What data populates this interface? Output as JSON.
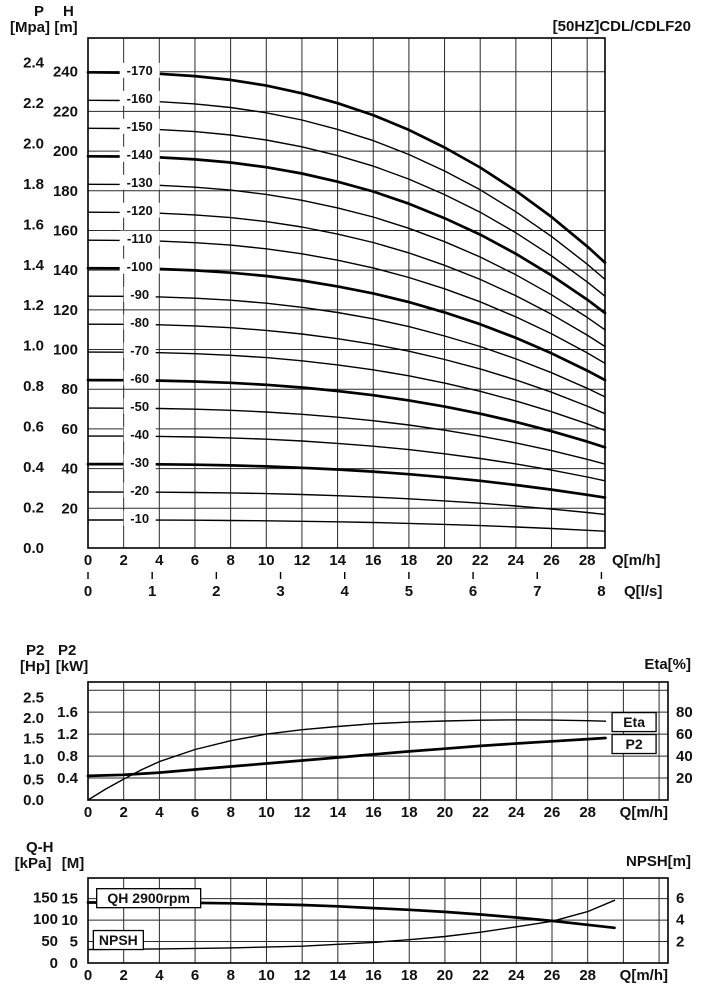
{
  "chart_data": [
    {
      "type": "line",
      "title": "[50HZ]CDL/CDLF20",
      "header": {
        "col1": "P",
        "col2": "H",
        "col1_unit": "[Mpa]",
        "col2_unit": "[m]"
      },
      "x_axis": {
        "label": "Q[m/h]",
        "min": 0,
        "max": 29,
        "grid_step": 2,
        "ticks": [
          "0",
          "2",
          "4",
          "6",
          "8",
          "10",
          "12",
          "14",
          "16",
          "18",
          "20",
          "22",
          "24",
          "26",
          "28"
        ]
      },
      "x_axis2": {
        "label": "Q[l/s]",
        "to_primary": 3.6,
        "ticks": [
          "0",
          "1",
          "2",
          "3",
          "4",
          "5",
          "6",
          "7",
          "8"
        ]
      },
      "y_axis": {
        "unit": "m",
        "min": 0,
        "max": 257,
        "grid_step": 20,
        "ticks": [
          "240",
          "220",
          "200",
          "180",
          "160",
          "140",
          "120",
          "100",
          "80",
          "60",
          "40",
          "20"
        ]
      },
      "y_axis_outer": {
        "unit": "Mpa",
        "to_primary": 101.94,
        "ticks": [
          "2.4",
          "2.2",
          "2.0",
          "1.8",
          "1.6",
          "1.4",
          "1.2",
          "1.0",
          "0.8",
          "0.6",
          "0.4",
          "0.2",
          "0.0"
        ]
      },
      "q_samples": [
        0,
        2,
        4,
        6,
        8,
        10,
        12,
        14,
        16,
        18,
        20,
        22,
        24,
        26,
        28,
        29
      ],
      "head_factors": [
        1,
        0.9995,
        0.997,
        0.992,
        0.984,
        0.972,
        0.956,
        0.935,
        0.91,
        0.879,
        0.842,
        0.8,
        0.751,
        0.696,
        0.634,
        0.6
      ],
      "series": [
        {
          "name": "-170",
          "shutoff_head_m": 239.7,
          "bold": true
        },
        {
          "name": "-160",
          "shutoff_head_m": 225.6,
          "bold": false
        },
        {
          "name": "-150",
          "shutoff_head_m": 211.5,
          "bold": false
        },
        {
          "name": "-140",
          "shutoff_head_m": 197.4,
          "bold": true
        },
        {
          "name": "-130",
          "shutoff_head_m": 183.3,
          "bold": false
        },
        {
          "name": "-120",
          "shutoff_head_m": 169.2,
          "bold": false
        },
        {
          "name": "-110",
          "shutoff_head_m": 155.1,
          "bold": false
        },
        {
          "name": "-100",
          "shutoff_head_m": 141.0,
          "bold": true
        },
        {
          "name": "-90",
          "shutoff_head_m": 126.9,
          "bold": false
        },
        {
          "name": "-80",
          "shutoff_head_m": 112.8,
          "bold": false
        },
        {
          "name": "-70",
          "shutoff_head_m": 98.7,
          "bold": false
        },
        {
          "name": "-60",
          "shutoff_head_m": 84.6,
          "bold": true
        },
        {
          "name": "-50",
          "shutoff_head_m": 70.5,
          "bold": false
        },
        {
          "name": "-40",
          "shutoff_head_m": 56.4,
          "bold": false
        },
        {
          "name": "-30",
          "shutoff_head_m": 42.3,
          "bold": true
        },
        {
          "name": "-20",
          "shutoff_head_m": 28.2,
          "bold": false
        },
        {
          "name": "-10",
          "shutoff_head_m": 14.1,
          "bold": false
        }
      ]
    },
    {
      "type": "line",
      "header": {
        "col1": "P2",
        "col2": "P2",
        "col1_unit": "[Hp]",
        "col2_unit": "[kW]",
        "right": "Eta[%]"
      },
      "x_axis": {
        "label": "Q[m/h]",
        "min": 0,
        "max": 32.5,
        "grid_step": 2,
        "ticks": [
          "0",
          "2",
          "4",
          "6",
          "8",
          "10",
          "12",
          "14",
          "16",
          "18",
          "20",
          "22",
          "24",
          "26",
          "28"
        ]
      },
      "y_axis": {
        "unit": "kW",
        "min": 0,
        "max": 2.15,
        "grid_step": 0.4,
        "ticks": [
          "1.6",
          "1.2",
          "0.8",
          "0.4"
        ]
      },
      "y_axis_outer": {
        "unit": "Hp",
        "to_primary": 0.7457,
        "ticks": [
          "2.5",
          "2.0",
          "1.5",
          "1.0",
          "0.5",
          "0.0"
        ]
      },
      "y_axis_right": {
        "unit": "%",
        "to_primary": 0.02,
        "ticks": [
          "80",
          "60",
          "40",
          "20"
        ]
      },
      "series": [
        {
          "name": "Eta",
          "axis": "right",
          "bold": false,
          "x": [
            0,
            1,
            2,
            3,
            4,
            6,
            8,
            10,
            12,
            14,
            16,
            18,
            20,
            22,
            24,
            26,
            28,
            29
          ],
          "y": [
            0,
            10,
            19,
            27.5,
            35,
            46,
            54,
            60,
            64,
            67,
            69.5,
            71,
            72,
            72.7,
            73,
            72.8,
            72.2,
            71.8
          ]
        },
        {
          "name": "P2",
          "bold": true,
          "x": [
            0,
            2,
            4,
            6,
            8,
            10,
            12,
            14,
            16,
            18,
            20,
            22,
            24,
            26,
            28,
            29
          ],
          "y": [
            0.44,
            0.46,
            0.5,
            0.555,
            0.61,
            0.665,
            0.72,
            0.775,
            0.83,
            0.885,
            0.935,
            0.985,
            1.03,
            1.07,
            1.11,
            1.13
          ]
        }
      ],
      "annotations": [
        {
          "text": "Eta",
          "q": 30.6,
          "v": 1.42,
          "boxed": true
        },
        {
          "text": "P2",
          "q": 30.6,
          "v": 1.02,
          "boxed": true
        }
      ]
    },
    {
      "type": "line",
      "header": {
        "col1": "Q-H",
        "col1_unit": "[kPa]",
        "col2_unit": "[M]",
        "right": "NPSH[m]"
      },
      "x_axis": {
        "label": "Q[m/h]",
        "min": 0,
        "max": 32.5,
        "grid_step": 2,
        "ticks": [
          "0",
          "2",
          "4",
          "6",
          "8",
          "10",
          "12",
          "14",
          "16",
          "18",
          "20",
          "22",
          "24",
          "26",
          "28"
        ]
      },
      "y_axis": {
        "unit": "M",
        "min": 0,
        "max": 19.8,
        "grid_step": 5,
        "ticks": [
          "15",
          "10",
          "5",
          "0"
        ]
      },
      "y_axis_outer": {
        "unit": "kPa",
        "to_primary": 0.10194,
        "ticks": [
          "150",
          "100",
          "50",
          "0"
        ]
      },
      "y_axis_right": {
        "unit": "m",
        "to_primary": 2.52,
        "ticks": [
          "6",
          "4",
          "2"
        ]
      },
      "series": [
        {
          "name": "QH 2900rpm",
          "bold": true,
          "x": [
            0,
            2,
            4,
            6,
            8,
            10,
            12,
            14,
            16,
            18,
            20,
            22,
            24,
            26,
            28,
            29.5
          ],
          "y": [
            14.1,
            14.1,
            14.1,
            14.0,
            13.9,
            13.7,
            13.5,
            13.2,
            12.8,
            12.4,
            11.9,
            11.3,
            10.6,
            9.8,
            8.9,
            8.2
          ]
        },
        {
          "name": "NPSH",
          "axis": "right",
          "bold": false,
          "x": [
            0,
            4,
            8,
            12,
            16,
            18,
            20,
            22,
            24,
            26,
            28,
            29.5
          ],
          "y": [
            1.25,
            1.3,
            1.4,
            1.55,
            1.9,
            2.15,
            2.45,
            2.85,
            3.35,
            3.85,
            4.75,
            5.8
          ]
        }
      ],
      "annotations": [
        {
          "text": "QH 2900rpm",
          "q": 3.4,
          "v": 15.1,
          "boxed": true
        },
        {
          "text": "NPSH",
          "q": 1.7,
          "v": 5.35,
          "boxed": true
        }
      ]
    }
  ]
}
